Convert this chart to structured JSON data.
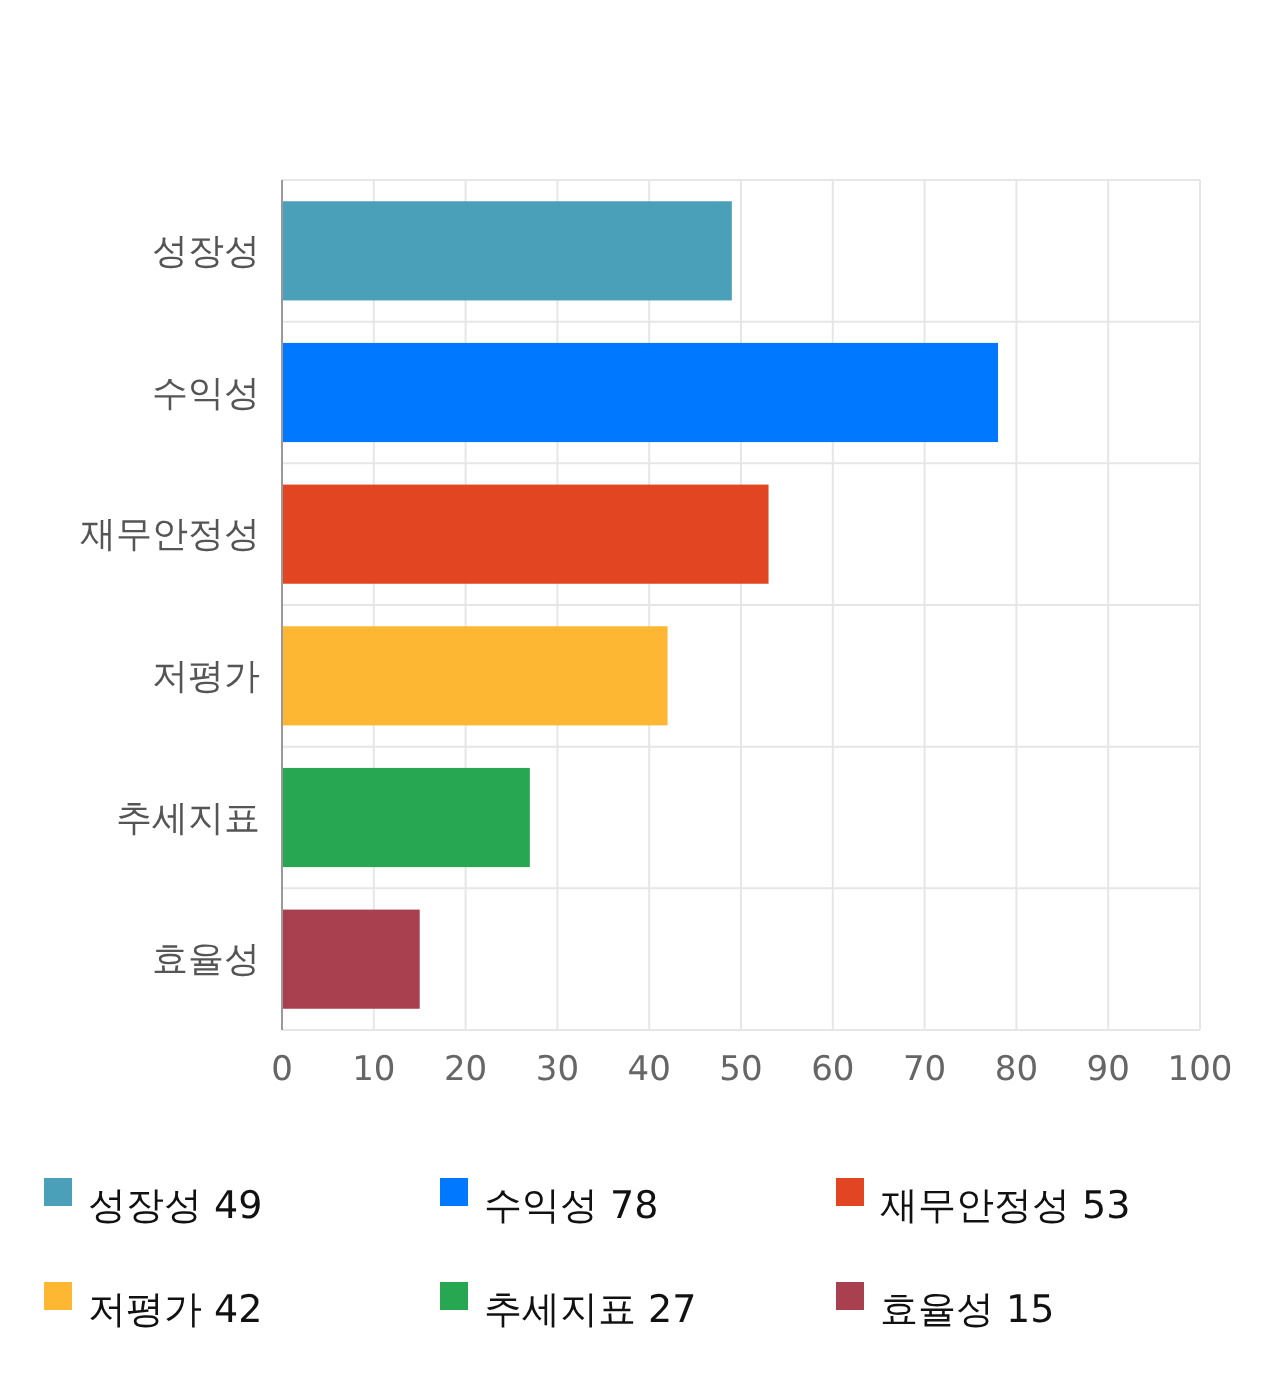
{
  "chart_data": {
    "type": "bar",
    "orientation": "horizontal",
    "stacked": true,
    "categories": [
      "성장성",
      "수익성",
      "재무안정성",
      "저평가",
      "추세지표",
      "효율성"
    ],
    "series": [
      {
        "name": "성장성 49",
        "color": "#4aa0b9",
        "values": [
          49,
          null,
          null,
          null,
          null,
          null
        ]
      },
      {
        "name": "수익성 78",
        "color": "#0078ff",
        "values": [
          null,
          78,
          null,
          null,
          null,
          null
        ]
      },
      {
        "name": "재무안정성 53",
        "color": "#e24522",
        "values": [
          null,
          null,
          53,
          null,
          null,
          null
        ]
      },
      {
        "name": "저평가 42",
        "color": "#fdb733",
        "values": [
          null,
          null,
          null,
          42,
          null,
          null
        ]
      },
      {
        "name": "추세지표 27",
        "color": "#28a753",
        "values": [
          null,
          null,
          null,
          null,
          27,
          null
        ]
      },
      {
        "name": "효율성 15",
        "color": "#a8404f",
        "values": [
          null,
          null,
          null,
          null,
          null,
          15
        ]
      }
    ],
    "xlim": [
      0,
      100
    ],
    "xticks": [
      0,
      10,
      20,
      30,
      40,
      50,
      60,
      70,
      80,
      90,
      100
    ],
    "grid": true,
    "legend": "bottom"
  }
}
